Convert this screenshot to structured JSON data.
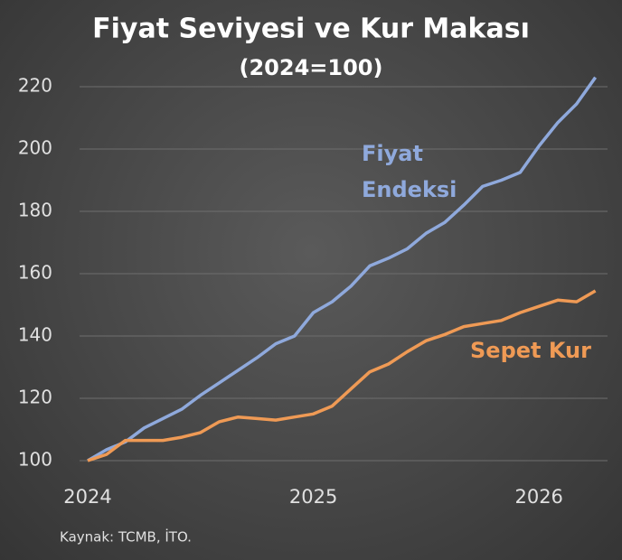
{
  "chart_data": {
    "type": "line",
    "title": "Fiyat Seviyesi ve Kur Makası",
    "subtitle": "(2024=100)",
    "source": "Kaynak: TCMB, İTO.",
    "categories": [
      "2024",
      null,
      null,
      null,
      null,
      null,
      null,
      null,
      null,
      null,
      null,
      null,
      "2025",
      null,
      null,
      null,
      null,
      null,
      null,
      null,
      null,
      null,
      null,
      null,
      "2026",
      null,
      null,
      null
    ],
    "series": [
      {
        "name": "Fiyat Endeksi",
        "color": "#8fa9dc",
        "values": [
          100,
          103.5,
          106,
          110.5,
          113.5,
          116.5,
          121,
          125,
          129,
          133,
          137.5,
          140,
          147.5,
          151,
          156,
          162.5,
          165,
          168,
          173,
          176.5,
          182,
          188,
          190,
          192.5,
          201,
          208.5,
          214.5,
          223
        ]
      },
      {
        "name": "Sepet Kur",
        "color": "#ef9a55",
        "values": [
          100,
          102,
          106.5,
          106.5,
          106.5,
          107.5,
          109,
          112.5,
          114,
          113.5,
          113,
          114,
          115,
          117.5,
          123,
          128.5,
          131,
          135,
          138.5,
          140.5,
          143,
          144,
          145,
          147.5,
          149.5,
          151.5,
          151,
          154.5
        ]
      }
    ],
    "ylim": [
      100,
      220
    ],
    "yticks": [
      100,
      120,
      140,
      160,
      180,
      200,
      220
    ],
    "grid": true
  }
}
